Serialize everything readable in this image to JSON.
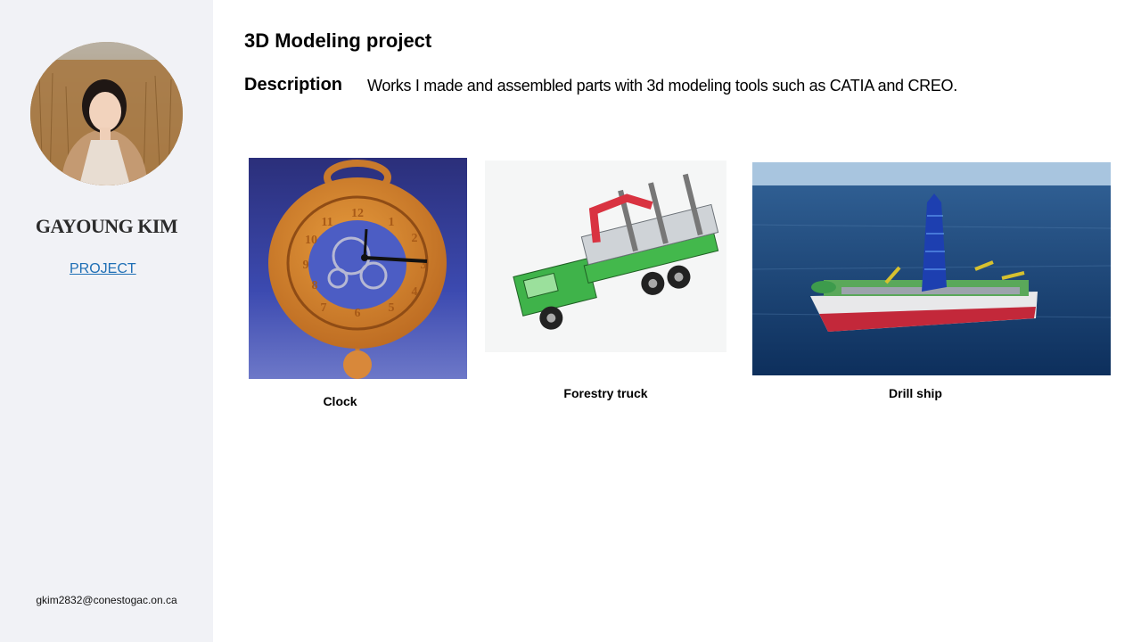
{
  "sidebar": {
    "name": "GAYOUNG KIM",
    "link_label": "PROJECT",
    "email": "gkim2832@conestogac.on.ca"
  },
  "main": {
    "title": "3D Modeling project",
    "description_label": "Description",
    "description_text": "Works I made and assembled parts with  3d modeling tools such as CATIA and CREO."
  },
  "gallery": [
    {
      "caption": "Clock"
    },
    {
      "caption": "Forestry truck"
    },
    {
      "caption": "Drill ship"
    }
  ],
  "clock_numerals": [
    "12",
    "1",
    "2",
    "3",
    "4",
    "5",
    "6",
    "7",
    "8",
    "9",
    "10",
    "11"
  ]
}
